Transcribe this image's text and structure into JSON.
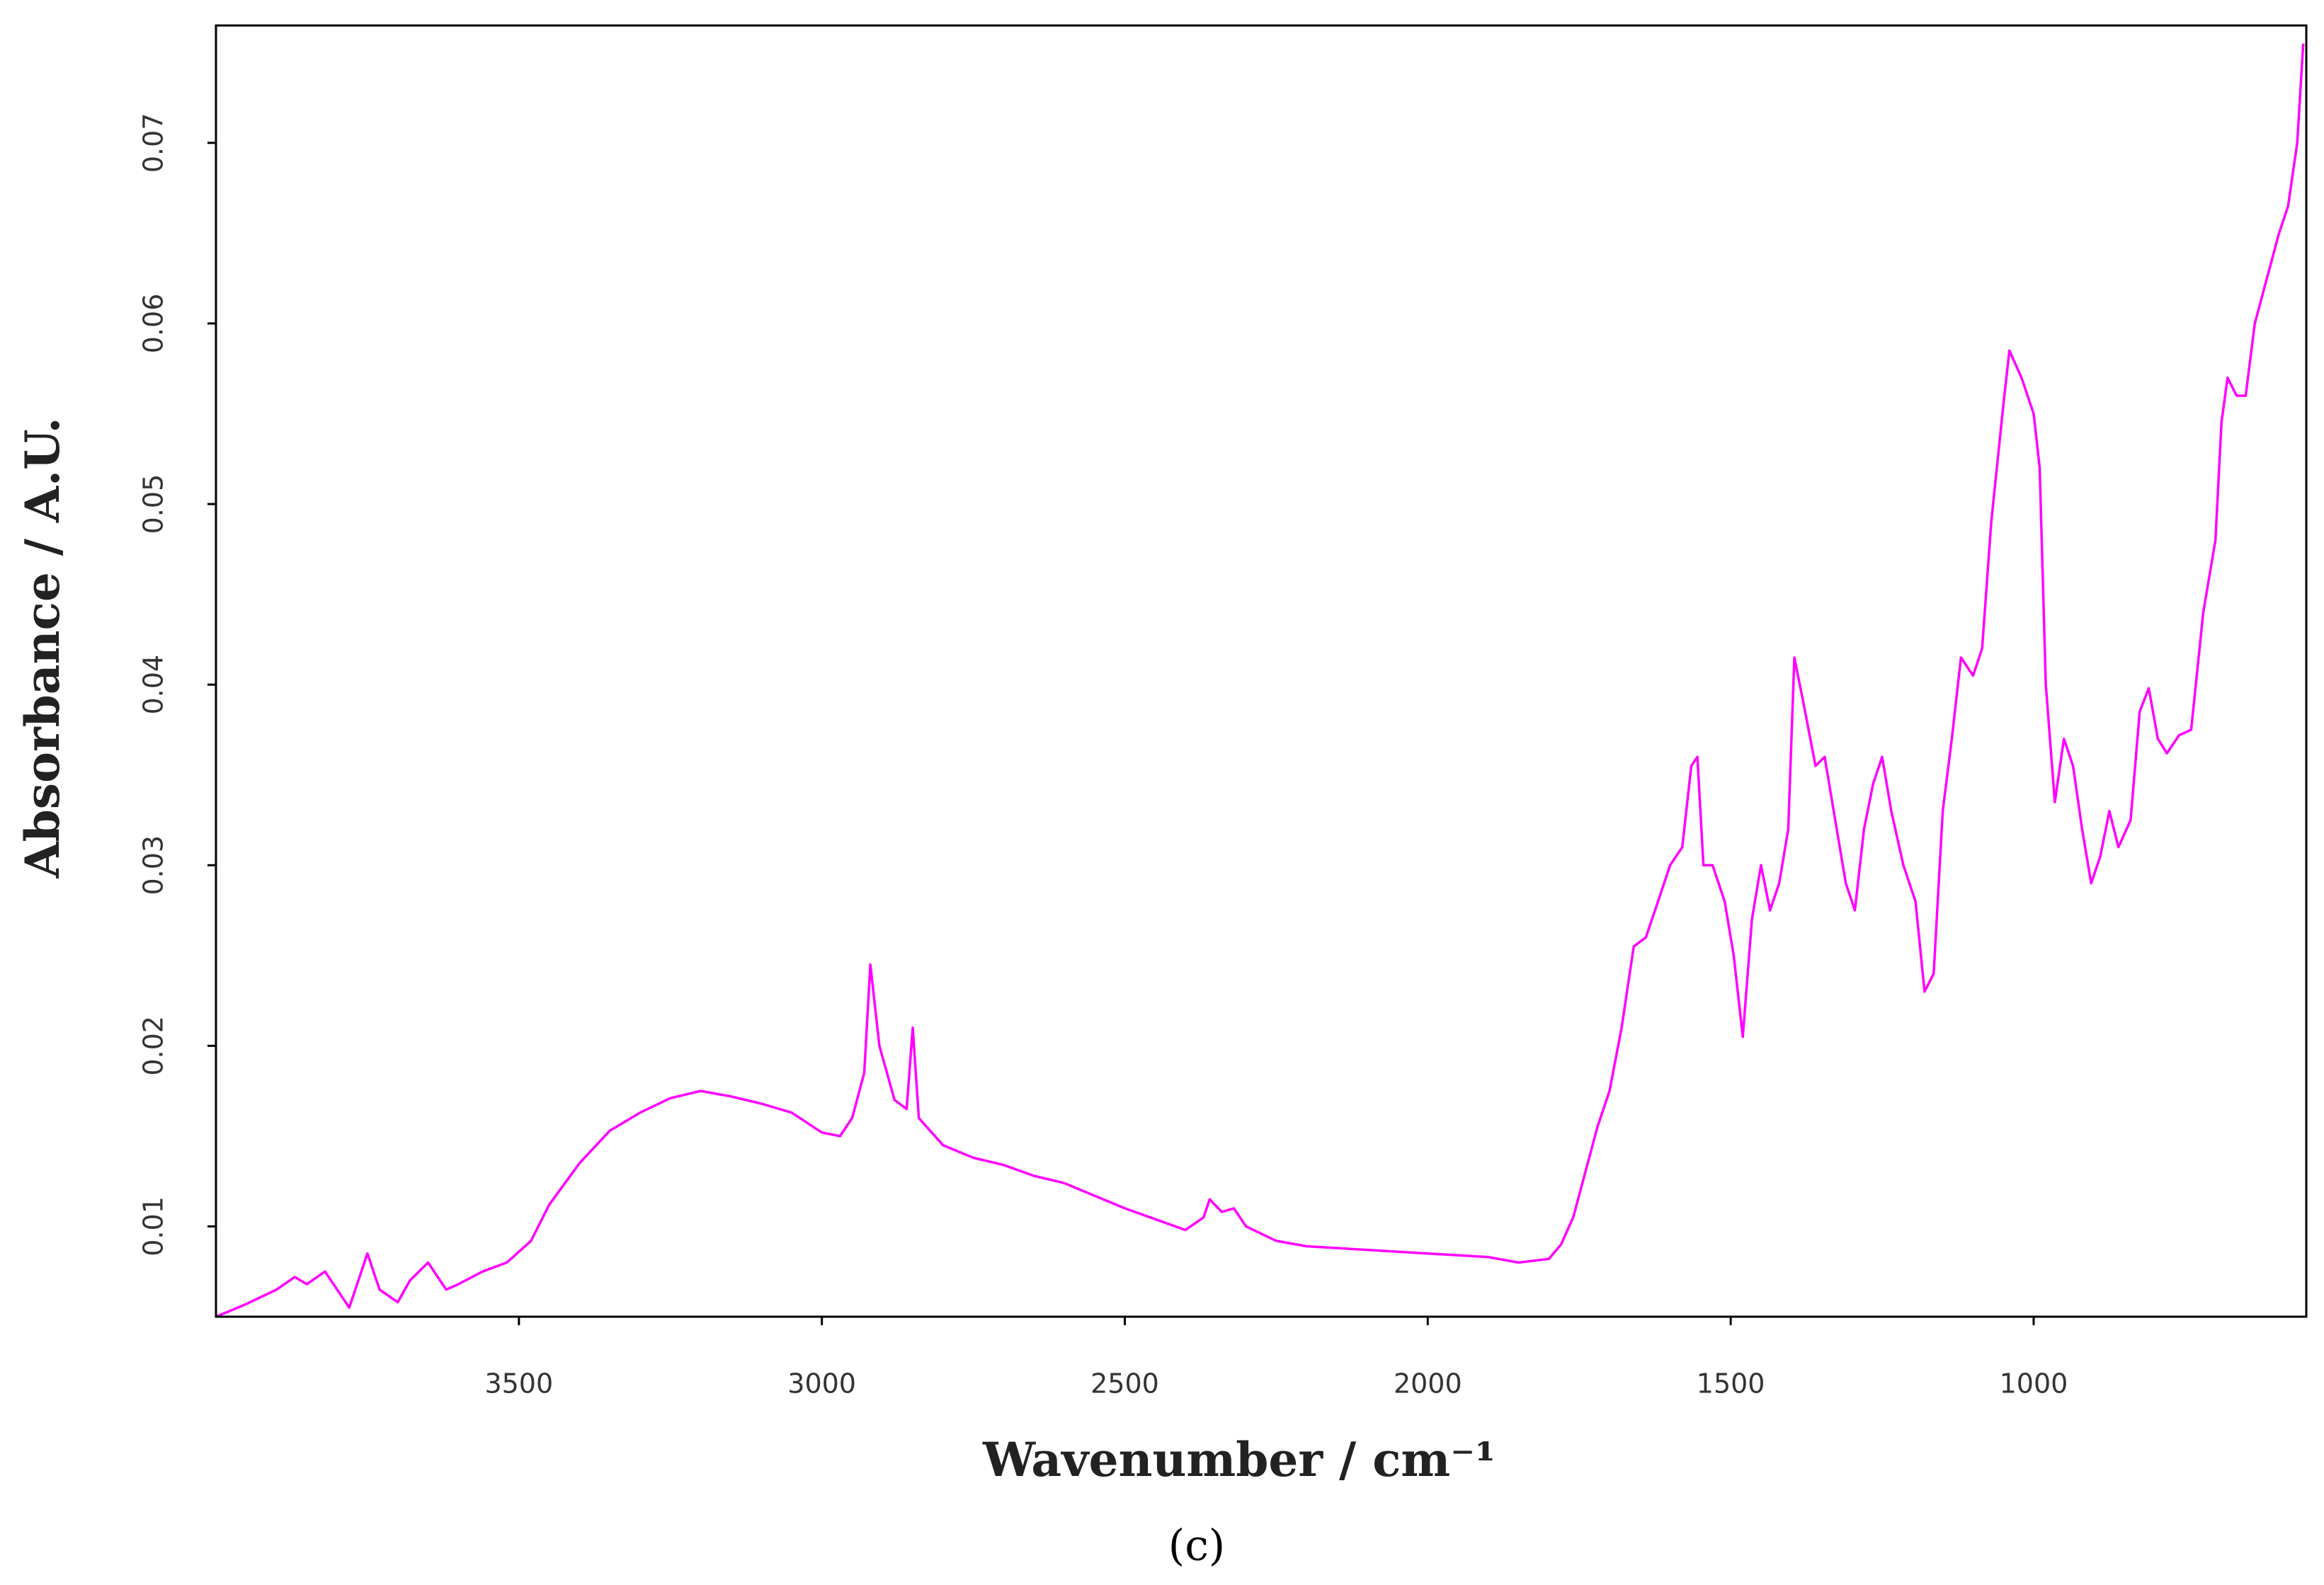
{
  "chart_data": {
    "type": "line",
    "x_label": "Wavenumber / cm⁻¹",
    "y_label": "Absorbance / A.U.",
    "caption": "(c)",
    "color": "#ff00ff",
    "xlim": [
      4000,
      550
    ],
    "ylim": [
      0.005,
      0.0765
    ],
    "xticks": [
      3500,
      3000,
      2500,
      2000,
      1500,
      1000
    ],
    "yticks": [
      0.01,
      0.02,
      0.03,
      0.04,
      0.05,
      0.06,
      0.07
    ],
    "x": [
      4000,
      3950,
      3900,
      3870,
      3850,
      3820,
      3800,
      3780,
      3750,
      3730,
      3700,
      3680,
      3650,
      3620,
      3600,
      3560,
      3520,
      3480,
      3450,
      3400,
      3350,
      3300,
      3250,
      3200,
      3150,
      3100,
      3050,
      3000,
      2970,
      2950,
      2930,
      2920,
      2905,
      2880,
      2860,
      2850,
      2840,
      2800,
      2750,
      2700,
      2650,
      2600,
      2550,
      2500,
      2450,
      2400,
      2370,
      2360,
      2340,
      2320,
      2300,
      2250,
      2200,
      2100,
      2000,
      1900,
      1850,
      1800,
      1780,
      1760,
      1740,
      1720,
      1700,
      1680,
      1660,
      1640,
      1620,
      1600,
      1580,
      1565,
      1555,
      1545,
      1530,
      1510,
      1495,
      1480,
      1465,
      1450,
      1435,
      1420,
      1405,
      1395,
      1380,
      1360,
      1345,
      1330,
      1310,
      1295,
      1280,
      1265,
      1250,
      1235,
      1215,
      1195,
      1180,
      1165,
      1150,
      1135,
      1120,
      1100,
      1085,
      1070,
      1050,
      1040,
      1020,
      1000,
      990,
      980,
      965,
      950,
      935,
      920,
      905,
      890,
      875,
      860,
      840,
      825,
      810,
      795,
      780,
      760,
      740,
      720,
      700,
      690,
      680,
      665,
      650,
      635,
      615,
      595,
      580,
      565,
      555
    ],
    "values": [
      0.005,
      0.0057,
      0.0065,
      0.0072,
      0.0068,
      0.0075,
      0.0065,
      0.0055,
      0.0085,
      0.0065,
      0.0058,
      0.007,
      0.008,
      0.0065,
      0.0068,
      0.0075,
      0.008,
      0.0092,
      0.0112,
      0.0135,
      0.0153,
      0.0163,
      0.0171,
      0.0175,
      0.0172,
      0.0168,
      0.0163,
      0.0152,
      0.015,
      0.016,
      0.0185,
      0.0245,
      0.02,
      0.017,
      0.0165,
      0.021,
      0.016,
      0.0145,
      0.0138,
      0.0134,
      0.0128,
      0.0124,
      0.0117,
      0.011,
      0.0104,
      0.0098,
      0.0105,
      0.0115,
      0.0108,
      0.011,
      0.01,
      0.0092,
      0.0089,
      0.0087,
      0.0085,
      0.0083,
      0.008,
      0.0082,
      0.009,
      0.0105,
      0.013,
      0.0155,
      0.0175,
      0.021,
      0.0255,
      0.026,
      0.028,
      0.03,
      0.031,
      0.0355,
      0.036,
      0.03,
      0.03,
      0.028,
      0.025,
      0.0205,
      0.027,
      0.03,
      0.0275,
      0.029,
      0.032,
      0.0415,
      0.039,
      0.0355,
      0.036,
      0.033,
      0.029,
      0.0275,
      0.032,
      0.0345,
      0.036,
      0.033,
      0.03,
      0.028,
      0.023,
      0.024,
      0.033,
      0.037,
      0.0415,
      0.0405,
      0.042,
      0.049,
      0.0555,
      0.0585,
      0.057,
      0.055,
      0.052,
      0.04,
      0.0335,
      0.037,
      0.0355,
      0.032,
      0.029,
      0.0305,
      0.033,
      0.031,
      0.0325,
      0.0385,
      0.0398,
      0.037,
      0.0362,
      0.0372,
      0.0375,
      0.044,
      0.048,
      0.0545,
      0.057,
      0.056,
      0.056,
      0.06,
      0.0625,
      0.065,
      0.0665,
      0.07,
      0.0755
    ]
  }
}
